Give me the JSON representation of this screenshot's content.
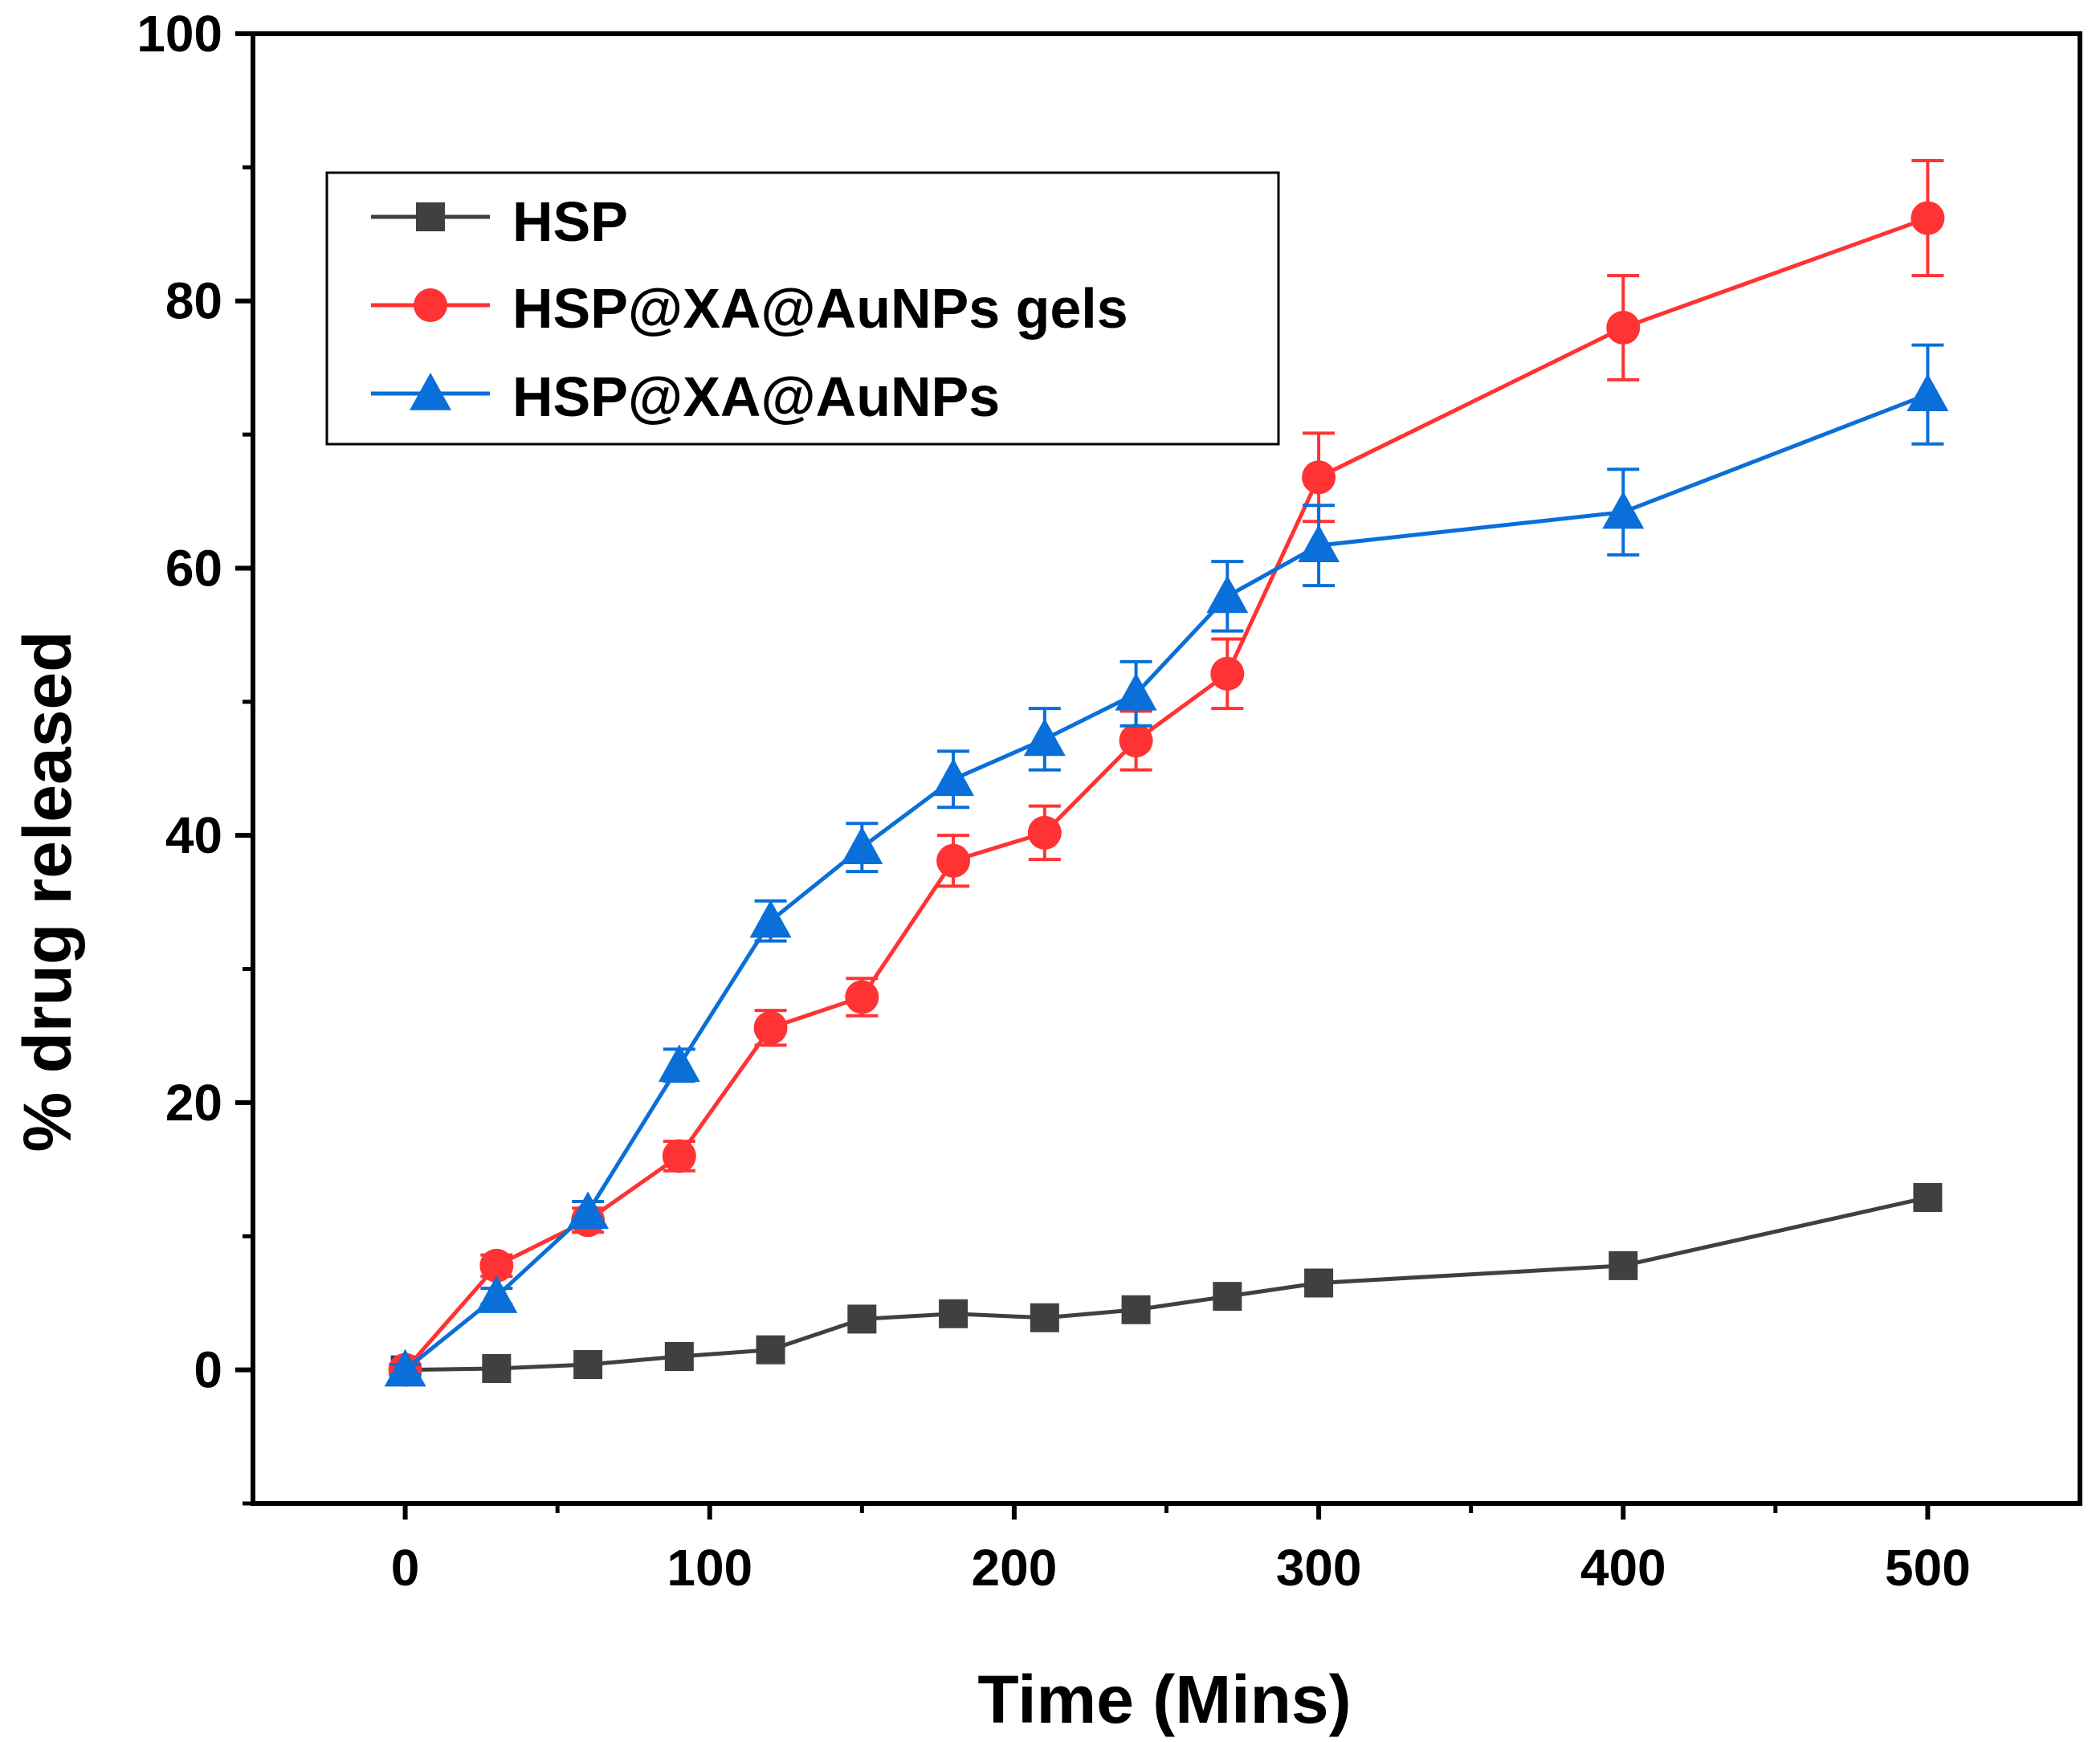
{
  "chart_data": {
    "type": "line",
    "title": "",
    "xlabel": "Time (Mins)",
    "ylabel": "% drug released",
    "xlim": [
      -50,
      550
    ],
    "ylim": [
      -10,
      100
    ],
    "xticks": [
      0,
      100,
      200,
      300,
      400,
      500
    ],
    "yticks": [
      0,
      20,
      40,
      60,
      80,
      100
    ],
    "x_minor_ticks": [
      50,
      150,
      250,
      350,
      450
    ],
    "y_minor_ticks": [
      -10,
      10,
      30,
      50,
      70,
      90
    ],
    "grid": false,
    "legend_position": "top-left",
    "x": [
      0,
      30,
      60,
      90,
      120,
      150,
      180,
      210,
      240,
      270,
      300,
      400,
      500
    ],
    "series": [
      {
        "name": "HSP",
        "color": "#404040",
        "marker": "square",
        "values": [
          0,
          0.1,
          0.4,
          1.0,
          1.5,
          3.8,
          4.2,
          3.9,
          4.5,
          5.5,
          6.5,
          7.8,
          12.9
        ],
        "errors": null
      },
      {
        "name": "HSP@XA@AuNPs gels",
        "color": "#ff3333",
        "marker": "circle",
        "values": [
          0,
          7.8,
          11.2,
          16.0,
          25.6,
          27.9,
          38.1,
          40.2,
          47.1,
          52.1,
          66.8,
          78.0,
          86.2
        ],
        "errors": [
          0.4,
          0.8,
          0.9,
          1.1,
          1.3,
          1.4,
          1.9,
          2.0,
          2.2,
          2.6,
          3.3,
          3.9,
          4.3
        ]
      },
      {
        "name": "HSP@XA@AuNPs",
        "color": "#0a6fd8",
        "marker": "triangle",
        "values": [
          0,
          5.5,
          11.8,
          22.8,
          33.6,
          39.1,
          44.2,
          47.2,
          50.6,
          57.9,
          61.7,
          64.2,
          73.0
        ],
        "errors": [
          0.4,
          0.6,
          0.8,
          1.2,
          1.5,
          1.8,
          2.1,
          2.3,
          2.4,
          2.6,
          3.0,
          3.2,
          3.7
        ]
      }
    ]
  }
}
